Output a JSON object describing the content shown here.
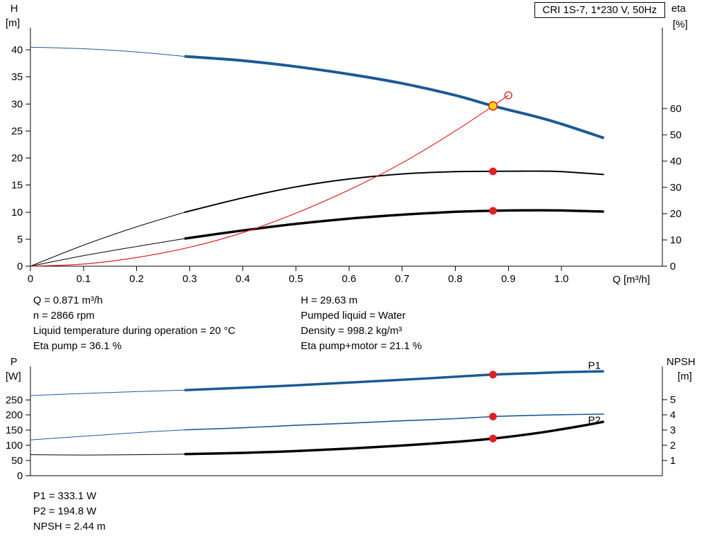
{
  "header": {
    "title": "CRI 1S-7, 1*230 V, 50Hz"
  },
  "colors": {
    "curve_blue": "#1a5a96",
    "curve_red": "#e02020",
    "curve_black": "#000000",
    "duty_fill": "#ffd800",
    "axis": "#000000"
  },
  "info_top": {
    "left": [
      "Q = 0.871 m³/h",
      "n = 2866 rpm",
      "Liquid temperature during operation = 20 °C",
      "Eta pump = 36.1 %"
    ],
    "right": [
      "H = 29.63 m",
      "Pumped liquid = Water",
      "Density = 998.2 kg/m³",
      "Eta pump+motor = 21.1 %"
    ]
  },
  "info_bottom": [
    "P1 = 333.1 W",
    "P2 = 194.8 W",
    "NPSH = 2.44 m"
  ],
  "duty_point": {
    "Q": 0.871,
    "H": 29.63,
    "eta_pump": 36.1,
    "eta_pump_motor": 21.1,
    "P1": 333.1,
    "P2": 194.8,
    "NPSH": 2.44
  },
  "chart_data": [
    {
      "type": "line",
      "name": "qh-eta-chart",
      "title": "CRI 1S-7, 1*230 V, 50Hz",
      "x_axis": {
        "label": "Q [m³/h]",
        "range": [
          0,
          1.19
        ],
        "ticks": [
          0,
          0.1,
          0.2,
          0.3,
          0.4,
          0.5,
          0.6,
          0.7,
          0.8,
          0.9,
          1.0
        ],
        "tick_labels": [
          "0",
          "0.1",
          "0.2",
          "0.3",
          "0.4",
          "0.5",
          "0.6",
          "0.7",
          "0.8",
          "0.9",
          "1.0"
        ]
      },
      "y_left": {
        "label": "H",
        "unit": "[m]",
        "range": [
          0,
          44.1
        ],
        "ticks": [
          0,
          5,
          10,
          15,
          20,
          25,
          30,
          35,
          40
        ],
        "tick_labels": [
          "0",
          "5",
          "10",
          "15",
          "20",
          "25",
          "30",
          "35",
          "40"
        ]
      },
      "y_right": {
        "label": "eta",
        "unit": "[%]",
        "range": [
          0,
          90.8
        ],
        "ticks": [
          0,
          10,
          20,
          30,
          40,
          50,
          60
        ],
        "tick_labels": [
          "0",
          "10",
          "20",
          "30",
          "40",
          "50",
          "60"
        ]
      },
      "series": [
        {
          "name": "qh-curve-lead",
          "axis": "left",
          "color": "curve_blue",
          "width": 1,
          "points": [
            [
              0,
              40.5
            ],
            [
              0.1,
              40.2
            ],
            [
              0.2,
              39.6
            ],
            [
              0.29,
              38.8
            ]
          ]
        },
        {
          "name": "qh-curve",
          "axis": "left",
          "color": "curve_blue",
          "width": 4,
          "points": [
            [
              0.29,
              38.8
            ],
            [
              0.4,
              38.0
            ],
            [
              0.5,
              36.9
            ],
            [
              0.6,
              35.5
            ],
            [
              0.7,
              33.8
            ],
            [
              0.8,
              31.6
            ],
            [
              0.871,
              29.63
            ],
            [
              0.95,
              27.7
            ],
            [
              1.0,
              26.3
            ],
            [
              1.08,
              23.7
            ]
          ]
        },
        {
          "name": "eta-pump-lead",
          "axis": "right",
          "color": "curve_black",
          "width": 1,
          "points": [
            [
              0,
              0
            ],
            [
              0.1,
              8
            ],
            [
              0.2,
              15
            ],
            [
              0.29,
              20.5
            ]
          ]
        },
        {
          "name": "eta-pump-curve",
          "axis": "right",
          "color": "curve_black",
          "width": 2,
          "points": [
            [
              0.29,
              20.5
            ],
            [
              0.4,
              26.0
            ],
            [
              0.5,
              30.2
            ],
            [
              0.6,
              33.2
            ],
            [
              0.7,
              35.1
            ],
            [
              0.8,
              36.0
            ],
            [
              0.871,
              36.1
            ],
            [
              0.95,
              36.2
            ],
            [
              1.0,
              36.0
            ],
            [
              1.08,
              34.9
            ]
          ]
        },
        {
          "name": "eta-pump-motor-lead",
          "axis": "right",
          "color": "curve_black",
          "width": 1,
          "points": [
            [
              0,
              0
            ],
            [
              0.1,
              4.0
            ],
            [
              0.2,
              7.5
            ],
            [
              0.29,
              10.5
            ]
          ]
        },
        {
          "name": "eta-pump-motor-curve",
          "axis": "right",
          "color": "curve_black",
          "width": 3.5,
          "points": [
            [
              0.29,
              10.5
            ],
            [
              0.4,
              13.6
            ],
            [
              0.5,
              16.1
            ],
            [
              0.6,
              18.1
            ],
            [
              0.7,
              19.6
            ],
            [
              0.8,
              20.7
            ],
            [
              0.871,
              21.1
            ],
            [
              0.95,
              21.3
            ],
            [
              1.0,
              21.2
            ],
            [
              1.08,
              20.8
            ]
          ]
        },
        {
          "name": "system-curve",
          "axis": "left",
          "color": "curve_red",
          "width": 1.2,
          "points": [
            [
              0,
              0
            ],
            [
              0.1,
              0.4
            ],
            [
              0.2,
              1.6
            ],
            [
              0.3,
              3.5
            ],
            [
              0.4,
              6.2
            ],
            [
              0.5,
              9.8
            ],
            [
              0.6,
              14.1
            ],
            [
              0.7,
              19.1
            ],
            [
              0.8,
              25.0
            ],
            [
              0.871,
              29.63
            ],
            [
              0.9,
              31.6
            ]
          ]
        }
      ],
      "markers": [
        {
          "name": "system-open-circle",
          "axis": "left",
          "x": 0.9,
          "y": 31.6,
          "r": 5,
          "fill": "none",
          "stroke": "curve_red",
          "stroke_width": 1.4
        },
        {
          "name": "duty-point",
          "axis": "left",
          "x": 0.871,
          "y": 29.63,
          "r": 6,
          "fill": "duty_fill",
          "stroke": "curve_red",
          "stroke_width": 1.6
        },
        {
          "name": "eta-pump-duty-dot",
          "axis": "right",
          "x": 0.871,
          "y": 36.1,
          "r": 5.5,
          "fill": "curve_red",
          "stroke": "none",
          "stroke_width": 0
        },
        {
          "name": "eta-pump-motor-duty-dot",
          "axis": "right",
          "x": 0.871,
          "y": 21.1,
          "r": 5.5,
          "fill": "curve_red",
          "stroke": "none",
          "stroke_width": 0
        }
      ],
      "labels": []
    },
    {
      "type": "line",
      "name": "power-npsh-chart",
      "title": "",
      "x_axis": {
        "label": "",
        "range": [
          0,
          1.19
        ],
        "ticks": [],
        "tick_labels": []
      },
      "y_left": {
        "label": "P",
        "unit": "[W]",
        "range": [
          0,
          360
        ],
        "ticks": [
          0,
          50,
          100,
          150,
          200,
          250
        ],
        "tick_labels": [
          "0",
          "50",
          "100",
          "150",
          "200",
          "250"
        ]
      },
      "y_right": {
        "label": "NPSH",
        "unit": "[m]",
        "range": [
          0,
          7.18
        ],
        "ticks": [
          1,
          2,
          3,
          4,
          5
        ],
        "tick_labels": [
          "1",
          "2",
          "3",
          "4",
          "5"
        ]
      },
      "series": [
        {
          "name": "p1-lead",
          "axis": "left",
          "color": "curve_blue",
          "width": 1,
          "points": [
            [
              0,
              264
            ],
            [
              0.1,
              271
            ],
            [
              0.2,
              277
            ],
            [
              0.29,
              282
            ]
          ]
        },
        {
          "name": "p1-curve",
          "axis": "left",
          "color": "curve_blue",
          "width": 3.5,
          "points": [
            [
              0.29,
              282
            ],
            [
              0.4,
              290
            ],
            [
              0.5,
              298
            ],
            [
              0.6,
              307
            ],
            [
              0.7,
              316
            ],
            [
              0.8,
              326
            ],
            [
              0.871,
              333.1
            ],
            [
              0.95,
              338
            ],
            [
              1.0,
              341
            ],
            [
              1.08,
              344
            ]
          ]
        },
        {
          "name": "p2-lead",
          "axis": "left",
          "color": "curve_blue",
          "width": 1,
          "points": [
            [
              0,
              118
            ],
            [
              0.1,
              130
            ],
            [
              0.2,
              142
            ],
            [
              0.29,
              151
            ]
          ]
        },
        {
          "name": "p2-curve",
          "axis": "left",
          "color": "curve_blue",
          "width": 1.6,
          "points": [
            [
              0.29,
              151
            ],
            [
              0.4,
              158
            ],
            [
              0.5,
              166
            ],
            [
              0.6,
              173
            ],
            [
              0.7,
              181
            ],
            [
              0.8,
              188
            ],
            [
              0.871,
              194.8
            ],
            [
              0.95,
              199
            ],
            [
              1.0,
              201
            ],
            [
              1.08,
              203
            ]
          ]
        },
        {
          "name": "npsh-lead",
          "axis": "right",
          "color": "curve_black",
          "width": 1,
          "points": [
            [
              0,
              1.38
            ],
            [
              0.1,
              1.36
            ],
            [
              0.2,
              1.38
            ],
            [
              0.29,
              1.42
            ]
          ]
        },
        {
          "name": "npsh-curve",
          "axis": "right",
          "color": "curve_black",
          "width": 3.5,
          "points": [
            [
              0.29,
              1.42
            ],
            [
              0.4,
              1.5
            ],
            [
              0.5,
              1.62
            ],
            [
              0.6,
              1.78
            ],
            [
              0.7,
              1.98
            ],
            [
              0.8,
              2.22
            ],
            [
              0.871,
              2.44
            ],
            [
              0.95,
              2.78
            ],
            [
              1.0,
              3.05
            ],
            [
              1.05,
              3.35
            ],
            [
              1.08,
              3.55
            ]
          ]
        }
      ],
      "markers": [
        {
          "name": "p1-duty-dot",
          "axis": "left",
          "x": 0.871,
          "y": 333.1,
          "r": 5.5,
          "fill": "curve_red",
          "stroke": "none",
          "stroke_width": 0
        },
        {
          "name": "p2-duty-dot",
          "axis": "left",
          "x": 0.871,
          "y": 194.8,
          "r": 5.5,
          "fill": "curve_red",
          "stroke": "none",
          "stroke_width": 0
        },
        {
          "name": "npsh-duty-dot",
          "axis": "right",
          "x": 0.871,
          "y": 2.44,
          "r": 5.5,
          "fill": "curve_red",
          "stroke": "none",
          "stroke_width": 0
        }
      ],
      "labels": [
        {
          "text": "P1",
          "x": 1.05,
          "y": 352,
          "axis": "left",
          "color": "curve_blue"
        },
        {
          "text": "P2",
          "x": 1.05,
          "y": 172,
          "axis": "left",
          "color": "curve_blue"
        }
      ]
    }
  ]
}
